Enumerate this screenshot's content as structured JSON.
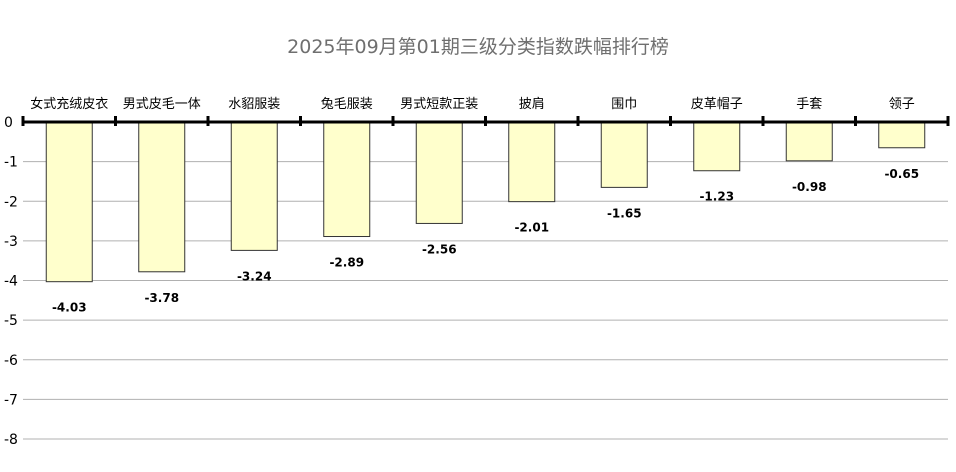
{
  "chart_data": {
    "type": "bar",
    "title": "2025年09月第01期三级分类指数跌幅排行榜",
    "categories": [
      "女式充绒皮衣",
      "男式皮毛一体",
      "水貂服装",
      "兔毛服装",
      "男式短款正装",
      "披肩",
      "围巾",
      "皮革帽子",
      "手套",
      "领子"
    ],
    "values": [
      -4.03,
      -3.78,
      -3.24,
      -2.89,
      -2.56,
      -2.01,
      -1.65,
      -1.23,
      -0.98,
      -0.65
    ],
    "data_labels": [
      "-4.03",
      "-3.78",
      "-3.24",
      "-2.89",
      "-2.56",
      "-2.01",
      "-1.65",
      "-1.23",
      "-0.98",
      "-0.65"
    ],
    "ylim": [
      -8,
      0
    ],
    "yticks": [
      0,
      -1,
      -2,
      -3,
      -4,
      -5,
      -6,
      -7,
      -8
    ],
    "ytick_labels": [
      "0",
      "-1",
      "-2",
      "-3",
      "-4",
      "-5",
      "-6",
      "-7",
      "-8"
    ],
    "xlabel": "",
    "ylabel": "",
    "grid": true,
    "legend": "none",
    "colors": {
      "bar_fill": "#ffffcc",
      "bar_stroke": "#333333",
      "grid": "#b0b0b0",
      "axis": "#000000",
      "title": "#6f6f6f"
    }
  }
}
